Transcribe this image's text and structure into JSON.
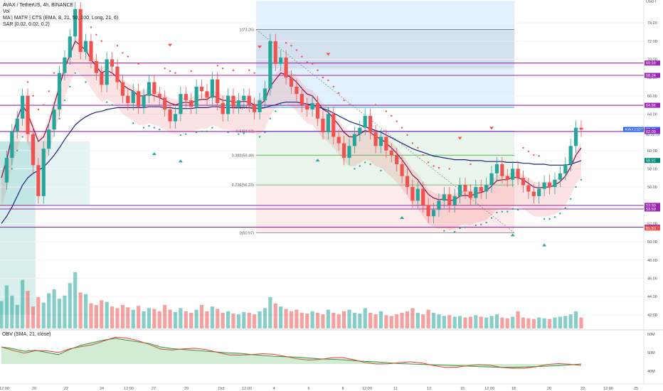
{
  "legend": {
    "title": "AVAX / TetherUS, 4h, BINANCE",
    "vol": "Vol",
    "ma_line": "MA | MATR | CTS (EMA, 8, 21, 50, 100, Long, 21, 6)",
    "sar_line": "SAR (0.02, 0.02, 0.2)"
  },
  "obv_legend": "OBV (SMA, 21, close)",
  "colors": {
    "up": "#26a69a",
    "down": "#ef5350",
    "fib_line": "#9c27b0",
    "ema_fast": "#880e4f",
    "ema_slow": "#1a237e",
    "sar": "#26a69a"
  },
  "fib_levels": [
    {
      "label": "1(73.26)",
      "value": 73.26
    },
    {
      "label": "0.5(62.12)",
      "value": 62.12
    },
    {
      "label": "0.618(64.73)",
      "value": 64.73
    },
    {
      "label": "0.382(59.49)",
      "value": 59.49
    },
    {
      "label": "0.236(56.23)",
      "value": 56.23
    },
    {
      "label": "0(50.97)",
      "value": 50.97
    }
  ],
  "price_tags": [
    {
      "text": "USDT",
      "value": 76.4,
      "kind": "plain"
    },
    {
      "text": "69.59",
      "value": 69.59,
      "kind": "purple"
    },
    {
      "text": "68.24",
      "value": 68.24,
      "kind": "purple"
    },
    {
      "text": "64.96",
      "value": 64.96,
      "kind": "purple"
    },
    {
      "text": "62.31",
      "value": 62.31,
      "kind": "blue"
    },
    {
      "text": "62.09",
      "value": 62.09,
      "kind": "purple"
    },
    {
      "text": "58.91",
      "value": 58.91,
      "kind": "teal"
    },
    {
      "text": "53.99",
      "value": 53.99,
      "kind": "purple"
    },
    {
      "text": "53.59",
      "value": 53.59,
      "kind": "purple"
    },
    {
      "text": "51.60",
      "value": 51.6,
      "kind": "purple"
    },
    {
      "text": "51.50",
      "value": 51.5,
      "kind": "red"
    }
  ],
  "symbol_tag": "AVAXUSDT",
  "countdown": "02:20:19",
  "y_ticks": [
    "74.00",
    "72.00",
    "70.00",
    "68.00",
    "66.00",
    "64.00",
    "62.00",
    "60.00",
    "58.00",
    "56.00",
    "54.00",
    "52.00",
    "50.00",
    "48.00",
    "46.00",
    "44.00",
    "42.00"
  ],
  "obv_ticks": [
    "60M",
    "50M",
    "40M"
  ],
  "x_ticks": [
    "12:00",
    "20",
    "22",
    "24",
    "12:00",
    "27",
    "29",
    "Oct",
    "12:00",
    "4",
    "6",
    "8",
    "12:00",
    "11",
    "13",
    "15",
    "12:00",
    "18",
    "20",
    "22",
    "12:00",
    "25"
  ],
  "chart_data": {
    "type": "candlestick",
    "title": "AVAX / TetherUS, 4h, BINANCE",
    "ylim": [
      40.5,
      76.5
    ],
    "xlabel": "",
    "ylabel": "",
    "series": [
      {
        "name": "AVAXUSDT",
        "ohlc_close": [
          56.5,
          59.2,
          62.1,
          63.5,
          66.0,
          61.8,
          58.4,
          55.0,
          60.2,
          62.3,
          64.5,
          68.5,
          70.2,
          72.5,
          75.5,
          70.8,
          72.0,
          69.8,
          68.5,
          67.2,
          70.0,
          69.2,
          67.5,
          66.0,
          65.2,
          66.5,
          64.8,
          66.0,
          67.5,
          66.2,
          65.8,
          64.5,
          63.2,
          64.0,
          66.2,
          65.5,
          64.8,
          67.0,
          66.5,
          65.8,
          67.8,
          65.2,
          64.0,
          66.0,
          64.8,
          65.5,
          66.0,
          65.0,
          64.2,
          65.5,
          66.8,
          72.0,
          69.5,
          70.2,
          68.0,
          67.0,
          66.2,
          65.0,
          64.5,
          65.2,
          63.5,
          62.0,
          64.0,
          61.5,
          60.8,
          59.2,
          60.5,
          61.8,
          62.5,
          63.8,
          62.0,
          60.5,
          61.5,
          60.0,
          59.5,
          58.5,
          57.2,
          56.0,
          54.5,
          55.8,
          54.0,
          52.8,
          53.5,
          54.5,
          55.2,
          54.0,
          55.0,
          56.2,
          55.5,
          54.8,
          56.0,
          55.5,
          56.2,
          57.5,
          58.5,
          57.2,
          56.8,
          58.0,
          57.0,
          56.2,
          55.5,
          55.0,
          55.8,
          56.5,
          56.0,
          56.8,
          57.5,
          58.5,
          60.5,
          62.5,
          62.3
        ]
      },
      {
        "name": "EMA fast",
        "values": [
          57.0,
          59.0,
          61.5,
          63.5,
          65.0,
          64.0,
          62.5,
          61.0,
          61.5,
          63.0,
          65.0,
          67.0,
          69.0,
          70.5,
          72.0,
          71.5,
          71.0,
          70.0,
          69.2,
          68.5,
          68.8,
          68.5,
          68.0,
          67.2,
          66.8,
          66.5,
          66.0,
          66.0,
          66.2,
          66.0,
          65.8,
          65.5,
          65.2,
          65.0,
          65.2,
          65.3,
          65.2,
          65.5,
          65.6,
          65.6,
          66.0,
          65.8,
          65.5,
          65.5,
          65.3,
          65.3,
          65.4,
          65.3,
          65.0,
          65.0,
          65.5,
          67.0,
          67.8,
          68.5,
          68.3,
          68.0,
          67.5,
          66.8,
          66.2,
          66.0,
          65.3,
          64.5,
          64.2,
          63.5,
          62.8,
          62.0,
          61.5,
          61.5,
          61.8,
          62.2,
          62.0,
          61.5,
          61.3,
          60.8,
          60.3,
          59.7,
          59.0,
          58.2,
          57.3,
          56.8,
          56.0,
          55.2,
          54.8,
          54.6,
          54.7,
          54.5,
          54.6,
          55.0,
          55.1,
          55.0,
          55.3,
          55.4,
          55.6,
          56.1,
          56.7,
          56.8,
          56.8,
          57.1,
          57.0,
          56.8,
          56.4,
          56.0,
          55.9,
          56.0,
          56.0,
          56.2,
          56.6,
          57.2,
          58.2,
          59.5,
          60.3
        ]
      },
      {
        "name": "EMA slow",
        "values": [
          52.0,
          52.8,
          53.8,
          55.0,
          56.2,
          57.0,
          57.5,
          57.8,
          58.2,
          58.8,
          59.5,
          60.3,
          61.2,
          62.0,
          62.8,
          63.3,
          63.7,
          64.0,
          64.2,
          64.3,
          64.5,
          64.6,
          64.7,
          64.7,
          64.7,
          64.7,
          64.7,
          64.7,
          64.8,
          64.8,
          64.8,
          64.7,
          64.7,
          64.6,
          64.6,
          64.6,
          64.6,
          64.7,
          64.7,
          64.7,
          64.8,
          64.8,
          64.7,
          64.7,
          64.7,
          64.7,
          64.7,
          64.7,
          64.6,
          64.6,
          64.7,
          64.9,
          65.0,
          65.2,
          65.3,
          65.3,
          65.3,
          65.2,
          65.1,
          65.0,
          64.8,
          64.6,
          64.4,
          64.1,
          63.8,
          63.5,
          63.2,
          63.0,
          62.8,
          62.6,
          62.4,
          62.2,
          62.0,
          61.7,
          61.4,
          61.1,
          60.8,
          60.5,
          60.2,
          60.0,
          59.8,
          59.6,
          59.4,
          59.3,
          59.2,
          59.1,
          59.0,
          59.0,
          59.0,
          58.9,
          58.9,
          58.9,
          58.8,
          58.8,
          58.8,
          58.8,
          58.7,
          58.7,
          58.7,
          58.6,
          58.6,
          58.5,
          58.5,
          58.5,
          58.4,
          58.4,
          58.4,
          58.4,
          58.5,
          58.7,
          58.9
        ]
      }
    ],
    "volume_relative": [
      0.35,
      0.55,
      0.42,
      0.3,
      0.62,
      0.48,
      0.28,
      0.4,
      0.33,
      0.45,
      0.5,
      0.38,
      0.42,
      0.58,
      0.72,
      0.46,
      0.44,
      0.32,
      0.3,
      0.36,
      0.34,
      0.28,
      0.26,
      0.3,
      0.27,
      0.24,
      0.29,
      0.22,
      0.26,
      0.25,
      0.22,
      0.3,
      0.24,
      0.21,
      0.26,
      0.22,
      0.2,
      0.24,
      0.3,
      0.22,
      0.28,
      0.25,
      0.2,
      0.22,
      0.19,
      0.18,
      0.21,
      0.2,
      0.18,
      0.22,
      0.26,
      0.4,
      0.32,
      0.28,
      0.25,
      0.22,
      0.24,
      0.2,
      0.19,
      0.22,
      0.2,
      0.18,
      0.24,
      0.2,
      0.18,
      0.22,
      0.24,
      0.2,
      0.19,
      0.26,
      0.2,
      0.18,
      0.22,
      0.17,
      0.16,
      0.18,
      0.2,
      0.22,
      0.26,
      0.2,
      0.18,
      0.24,
      0.2,
      0.18,
      0.16,
      0.17,
      0.15,
      0.16,
      0.14,
      0.15,
      0.17,
      0.15,
      0.14,
      0.16,
      0.18,
      0.14,
      0.13,
      0.15,
      0.22,
      0.14,
      0.13,
      0.12,
      0.14,
      0.13,
      0.12,
      0.14,
      0.15,
      0.16,
      0.18,
      0.22,
      0.14
    ],
    "obv_relative": [
      0.7,
      0.66,
      0.6,
      0.62,
      0.57,
      0.52,
      0.64,
      0.74,
      0.8,
      0.86,
      0.9,
      0.86,
      0.82,
      0.78,
      0.7,
      0.66,
      0.64,
      0.62,
      0.6,
      0.58,
      0.56,
      0.55,
      0.52,
      0.5,
      0.48,
      0.47,
      0.46,
      0.44,
      0.42,
      0.41,
      0.4,
      0.38,
      0.36,
      0.35,
      0.33,
      0.31,
      0.3,
      0.29,
      0.28,
      0.27,
      0.26,
      0.25,
      0.24,
      0.23,
      0.22,
      0.22,
      0.23,
      0.24,
      0.25,
      0.26,
      0.28,
      0.3
    ],
    "fib_retracement": [
      {
        "level": 1,
        "value": 73.26
      },
      {
        "level": 0.618,
        "value": 64.73
      },
      {
        "level": 0.5,
        "value": 62.12
      },
      {
        "level": 0.382,
        "value": 59.49
      },
      {
        "level": 0.236,
        "value": 56.23
      },
      {
        "level": 0,
        "value": 50.97
      }
    ],
    "horizontal_levels": [
      69.59,
      68.24,
      64.96,
      62.09,
      53.99,
      53.59,
      51.6
    ],
    "last_price": 62.31
  }
}
